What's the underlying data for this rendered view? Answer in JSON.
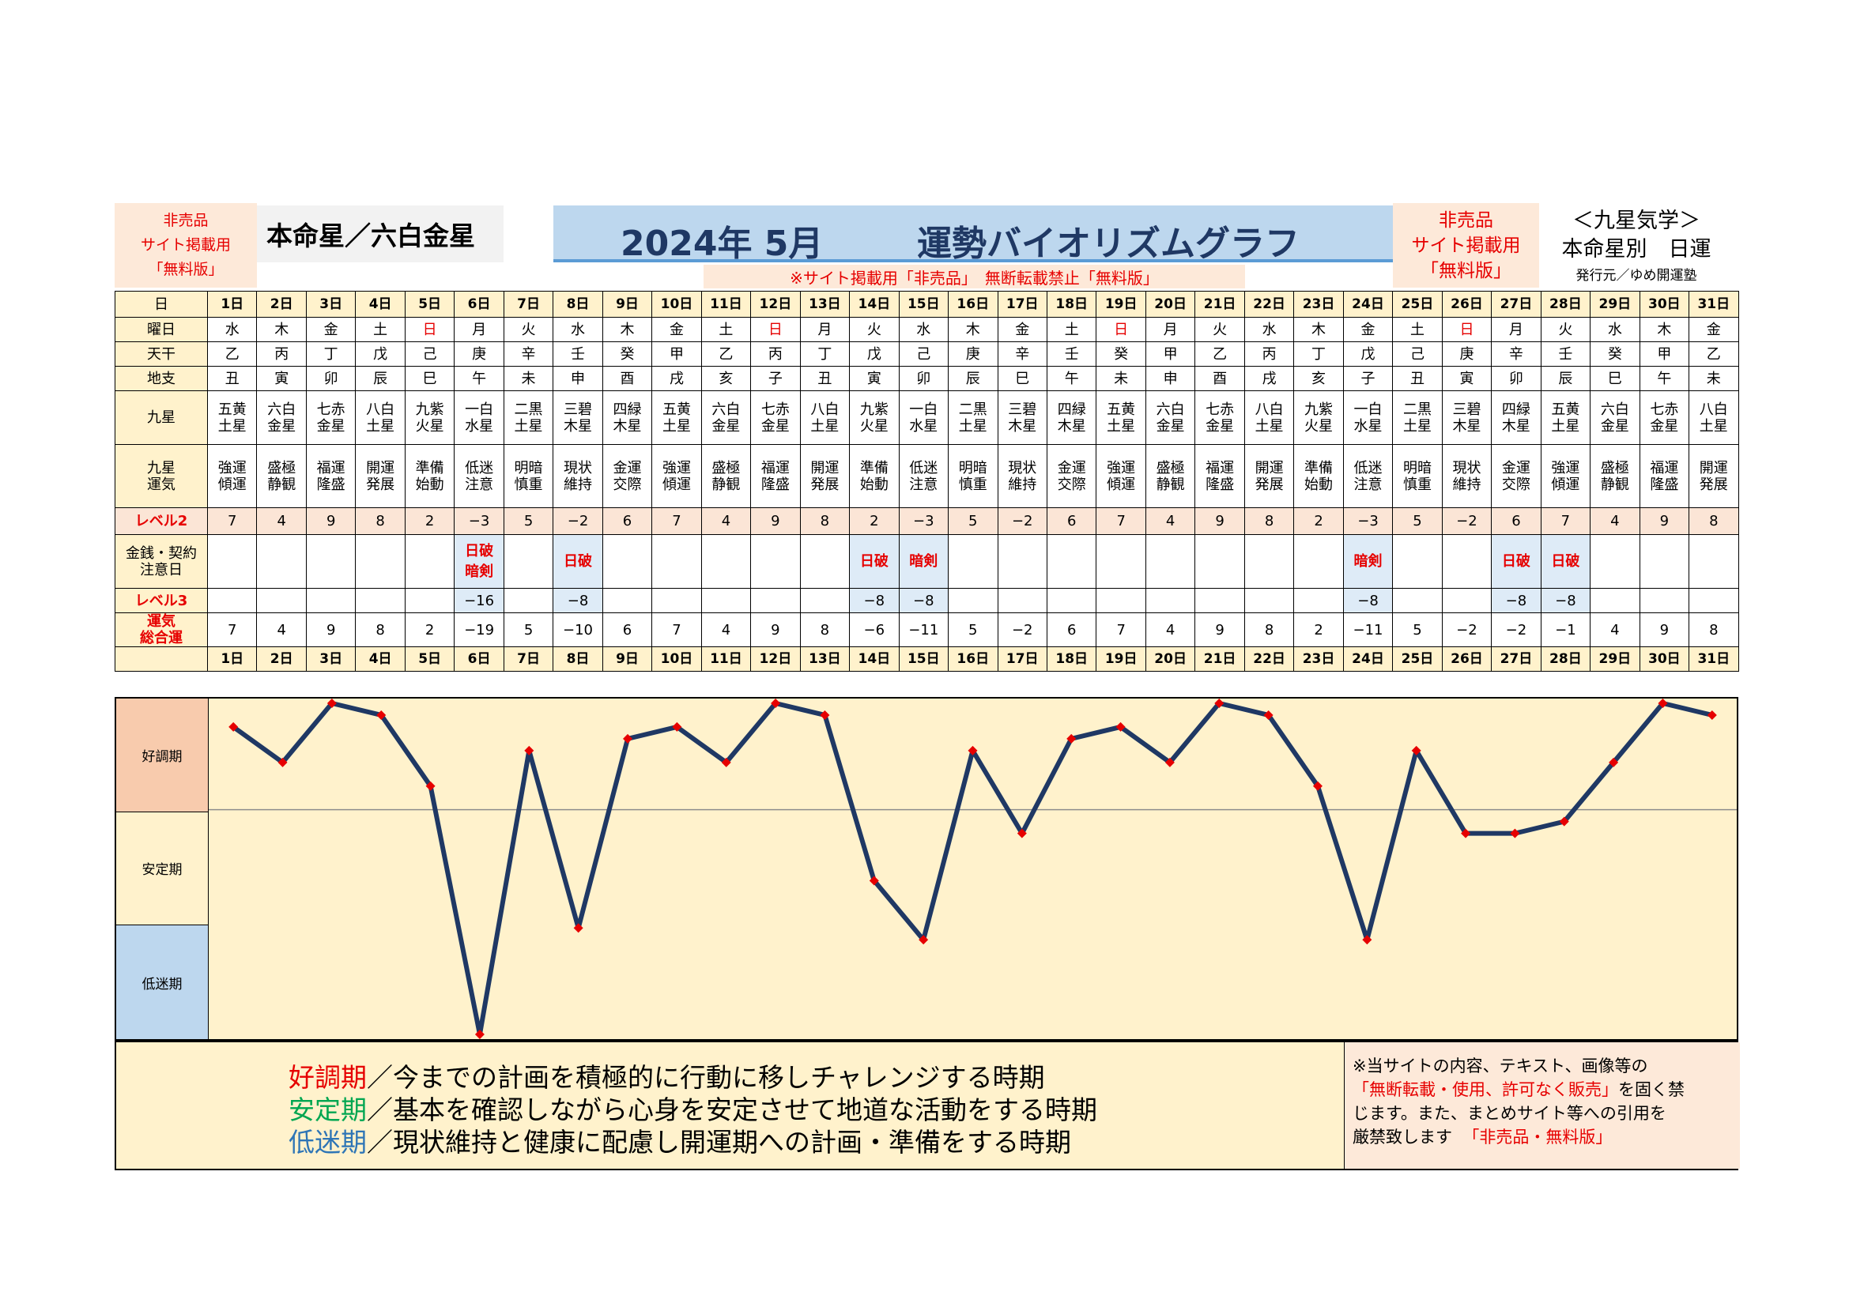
{
  "header": {
    "not_for_sale_left": [
      "非売品",
      "サイト掲載用",
      "「無料版」"
    ],
    "honmei": "本命星／六白金星",
    "title_date": "2024年 5月",
    "title_main": "運勢バイオリズムグラフ",
    "notice": "※サイト掲載用「非売品」　無断転載禁止「無料版」",
    "not_for_sale_right": [
      "非売品",
      "サイト掲載用",
      "「無料版」"
    ],
    "kyusei_title": "＜九星気学＞",
    "kyusei_sub": "本命星別　日運",
    "publisher": "発行元／ゆめ開運塾"
  },
  "row_labels": {
    "day": "日",
    "weekday": "曜日",
    "tenkan": "天干",
    "chishi": "地支",
    "kyusei": "九星",
    "kyusei_unki": [
      "九星",
      "運気"
    ],
    "level2": "レベル2",
    "money": [
      "金銭・契約",
      "注意日"
    ],
    "level3": "レベル3",
    "total": [
      "運気",
      "総合運"
    ]
  },
  "days": [
    "1日",
    "2日",
    "3日",
    "4日",
    "5日",
    "6日",
    "7日",
    "8日",
    "9日",
    "10日",
    "11日",
    "12日",
    "13日",
    "14日",
    "15日",
    "16日",
    "17日",
    "18日",
    "19日",
    "20日",
    "21日",
    "22日",
    "23日",
    "24日",
    "25日",
    "26日",
    "27日",
    "28日",
    "29日",
    "30日",
    "31日"
  ],
  "weekdays": [
    "水",
    "木",
    "金",
    "土",
    "日",
    "月",
    "火",
    "水",
    "木",
    "金",
    "土",
    "日",
    "月",
    "火",
    "水",
    "木",
    "金",
    "土",
    "日",
    "月",
    "火",
    "水",
    "木",
    "金",
    "土",
    "日",
    "月",
    "火",
    "水",
    "木",
    "金"
  ],
  "sunday_color": "#e60000",
  "tenkan": [
    "乙",
    "丙",
    "丁",
    "戊",
    "己",
    "庚",
    "辛",
    "壬",
    "癸",
    "甲",
    "乙",
    "丙",
    "丁",
    "戊",
    "己",
    "庚",
    "辛",
    "壬",
    "癸",
    "甲",
    "乙",
    "丙",
    "丁",
    "戊",
    "己",
    "庚",
    "辛",
    "壬",
    "癸",
    "甲",
    "乙"
  ],
  "chishi": [
    "丑",
    "寅",
    "卯",
    "辰",
    "巳",
    "午",
    "未",
    "申",
    "酉",
    "戌",
    "亥",
    "子",
    "丑",
    "寅",
    "卯",
    "辰",
    "巳",
    "午",
    "未",
    "申",
    "酉",
    "戌",
    "亥",
    "子",
    "丑",
    "寅",
    "卯",
    "辰",
    "巳",
    "午",
    "未"
  ],
  "kyusei": [
    [
      "五黄",
      "土星"
    ],
    [
      "六白",
      "金星"
    ],
    [
      "七赤",
      "金星"
    ],
    [
      "八白",
      "土星"
    ],
    [
      "九紫",
      "火星"
    ],
    [
      "一白",
      "水星"
    ],
    [
      "二黒",
      "土星"
    ],
    [
      "三碧",
      "木星"
    ],
    [
      "四緑",
      "木星"
    ],
    [
      "五黄",
      "土星"
    ],
    [
      "六白",
      "金星"
    ],
    [
      "七赤",
      "金星"
    ],
    [
      "八白",
      "土星"
    ],
    [
      "九紫",
      "火星"
    ],
    [
      "一白",
      "水星"
    ],
    [
      "二黒",
      "土星"
    ],
    [
      "三碧",
      "木星"
    ],
    [
      "四緑",
      "木星"
    ],
    [
      "五黄",
      "土星"
    ],
    [
      "六白",
      "金星"
    ],
    [
      "七赤",
      "金星"
    ],
    [
      "八白",
      "土星"
    ],
    [
      "九紫",
      "火星"
    ],
    [
      "一白",
      "水星"
    ],
    [
      "二黒",
      "土星"
    ],
    [
      "三碧",
      "木星"
    ],
    [
      "四緑",
      "木星"
    ],
    [
      "五黄",
      "土星"
    ],
    [
      "六白",
      "金星"
    ],
    [
      "七赤",
      "金星"
    ],
    [
      "八白",
      "土星"
    ]
  ],
  "kyusei_unki": [
    [
      "強運",
      "傾運"
    ],
    [
      "盛極",
      "静観"
    ],
    [
      "福運",
      "隆盛"
    ],
    [
      "開運",
      "発展"
    ],
    [
      "準備",
      "始動"
    ],
    [
      "低迷",
      "注意"
    ],
    [
      "明暗",
      "慎重"
    ],
    [
      "現状",
      "維持"
    ],
    [
      "金運",
      "交際"
    ],
    [
      "強運",
      "傾運"
    ],
    [
      "盛極",
      "静観"
    ],
    [
      "福運",
      "隆盛"
    ],
    [
      "開運",
      "発展"
    ],
    [
      "準備",
      "始動"
    ],
    [
      "低迷",
      "注意"
    ],
    [
      "明暗",
      "慎重"
    ],
    [
      "現状",
      "維持"
    ],
    [
      "金運",
      "交際"
    ],
    [
      "強運",
      "傾運"
    ],
    [
      "盛極",
      "静観"
    ],
    [
      "福運",
      "隆盛"
    ],
    [
      "開運",
      "発展"
    ],
    [
      "準備",
      "始動"
    ],
    [
      "低迷",
      "注意"
    ],
    [
      "明暗",
      "慎重"
    ],
    [
      "現状",
      "維持"
    ],
    [
      "金運",
      "交際"
    ],
    [
      "強運",
      "傾運"
    ],
    [
      "盛極",
      "静観"
    ],
    [
      "福運",
      "隆盛"
    ],
    [
      "開運",
      "発展"
    ]
  ],
  "level2": [
    "7",
    "4",
    "9",
    "8",
    "2",
    "−3",
    "5",
    "−2",
    "6",
    "7",
    "4",
    "9",
    "8",
    "2",
    "−3",
    "5",
    "−2",
    "6",
    "7",
    "4",
    "9",
    "8",
    "2",
    "−3",
    "5",
    "−2",
    "6",
    "7",
    "4",
    "9",
    "8"
  ],
  "money": [
    [],
    [],
    [],
    [],
    [],
    [
      "日破",
      "暗剣"
    ],
    [],
    [
      "日破"
    ],
    [],
    [],
    [],
    [],
    [],
    [
      "日破"
    ],
    [
      "暗剣"
    ],
    [],
    [],
    [],
    [],
    [],
    [],
    [],
    [],
    [
      "暗剣"
    ],
    [],
    [],
    [
      "日破"
    ],
    [
      "日破"
    ],
    [],
    [],
    []
  ],
  "level3": [
    "",
    "",
    "",
    "",
    "",
    "−16",
    "",
    "−8",
    "",
    "",
    "",
    "",
    "",
    "−8",
    "−8",
    "",
    "",
    "",
    "",
    "",
    "",
    "",
    "",
    "−8",
    "",
    "",
    "−8",
    "−8",
    "",
    "",
    ""
  ],
  "total": [
    "7",
    "4",
    "9",
    "8",
    "2",
    "−19",
    "5",
    "−10",
    "6",
    "7",
    "4",
    "9",
    "8",
    "−6",
    "−11",
    "5",
    "−2",
    "6",
    "7",
    "4",
    "9",
    "8",
    "2",
    "−11",
    "5",
    "−2",
    "−2",
    "−1",
    "4",
    "9",
    "8"
  ],
  "zones": [
    "好調期",
    "安定期",
    "低迷期"
  ],
  "legend": [
    {
      "term": "好調期",
      "color": "#e60000",
      "text": "／今までの計画を積極的に行動に移しチャレンジする時期"
    },
    {
      "term": "安定期",
      "color": "#00a651",
      "text": "／基本を確認しながら心身を安定させて地道な活動をする時期"
    },
    {
      "term": "低迷期",
      "color": "#2e75b6",
      "text": "／現状維持と健康に配慮し開運期への計画・準備をする時期"
    }
  ],
  "copyright": {
    "line1": "※当サイトの内容、テキスト、画像等の",
    "red1": "「無断転載・使用、許可なく販売」",
    "line2a": "を固く禁",
    "line3": "じます。また、まとめサイト等への引用を",
    "line4": "厳禁致します",
    "red2": "「非売品・無料版」"
  },
  "colors": {
    "line": "#1f3864",
    "marker": "#e60000",
    "zone_good": "#f8cbad",
    "zone_stable": "#fff2cc",
    "zone_low": "#bdd7ee"
  },
  "chart_data": {
    "type": "line",
    "categories": [
      "1日",
      "2日",
      "3日",
      "4日",
      "5日",
      "6日",
      "7日",
      "8日",
      "9日",
      "10日",
      "11日",
      "12日",
      "13日",
      "14日",
      "15日",
      "16日",
      "17日",
      "18日",
      "19日",
      "20日",
      "21日",
      "22日",
      "23日",
      "24日",
      "25日",
      "26日",
      "27日",
      "28日",
      "29日",
      "30日",
      "31日"
    ],
    "series": [
      {
        "values": [
          7,
          4,
          9,
          8,
          2,
          -19,
          5,
          -10,
          6,
          7,
          4,
          9,
          8,
          -6,
          -11,
          5,
          -2,
          6,
          7,
          4,
          9,
          8,
          2,
          -11,
          5,
          -2,
          -2,
          -1,
          4,
          9,
          8
        ]
      }
    ],
    "ylim": [
      -19,
      9
    ],
    "grid": false,
    "reference_line": 0
  }
}
